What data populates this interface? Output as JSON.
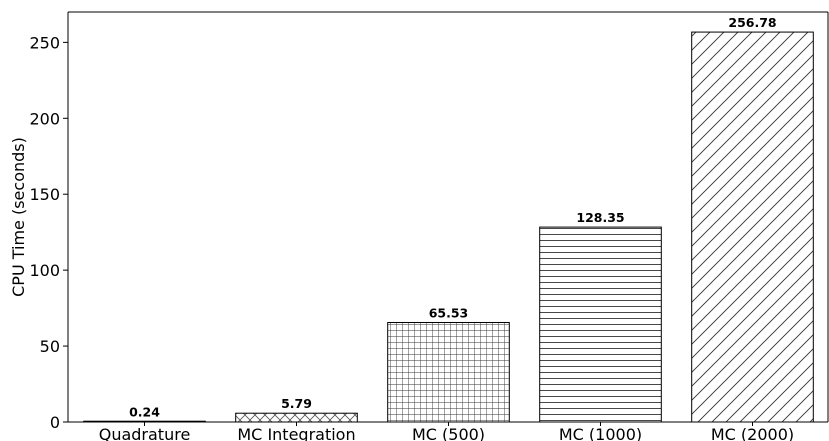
{
  "chart_data": {
    "type": "bar",
    "title": "",
    "xlabel": "",
    "ylabel": "CPU Time (seconds)",
    "ylim": [
      0,
      270
    ],
    "yticks": [
      0,
      50,
      100,
      150,
      200,
      250
    ],
    "grid": false,
    "categories": [
      "Quadrature",
      "MC Integration",
      "MC (500)",
      "MC (1000)",
      "MC (2000)"
    ],
    "values": [
      0.24,
      5.79,
      65.53,
      128.35,
      256.78
    ],
    "value_labels": [
      "0.24",
      "5.79",
      "65.53",
      "128.35",
      "256.78"
    ],
    "hatches": [
      "none",
      "cross-diagonal",
      "grid",
      "horizontal",
      "diagonal"
    ],
    "colors": {
      "bar_fill": "#ffffff",
      "bar_edge": "#000000",
      "axis": "#000000"
    }
  }
}
